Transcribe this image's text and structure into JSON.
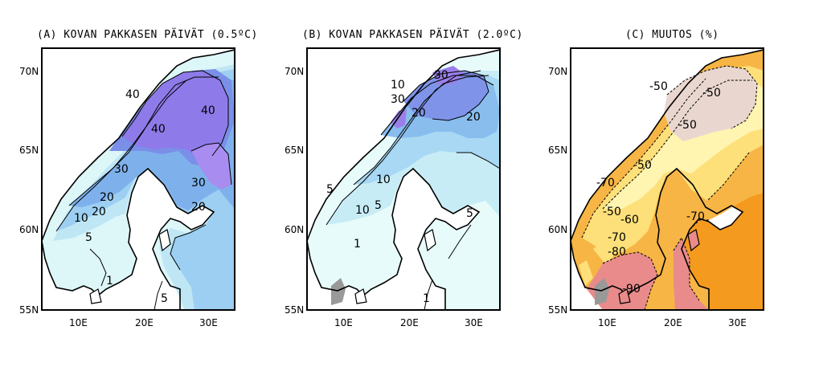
{
  "panels": [
    {
      "id": "a",
      "title": "(A) KOVAN PAKKASEN PÄIVÄT (0.5ºC)",
      "contour_labels": [
        "40",
        "40",
        "40",
        "30",
        "30",
        "20",
        "20",
        "20",
        "10",
        "5",
        "1",
        "5"
      ]
    },
    {
      "id": "b",
      "title": "(B) KOVAN PAKKASEN PÄIVÄT (2.0ºC)",
      "contour_labels": [
        "30",
        "10",
        "30",
        "20",
        "20",
        "10",
        "5",
        "10",
        "5",
        "1",
        "5",
        "1"
      ]
    },
    {
      "id": "c",
      "title": "(C) MUUTOS (%)",
      "contour_labels": [
        "-50",
        "-50",
        "-50",
        "-50",
        "-70",
        "-50",
        "-60",
        "-70",
        "-70",
        "-80",
        "-90"
      ]
    }
  ],
  "axes": {
    "lat_ticks": [
      "70N",
      "65N",
      "60N",
      "55N"
    ],
    "lon_ticks": [
      "10E",
      "20E",
      "30E"
    ]
  },
  "colors": {
    "a_scale": [
      "#ddf6f8",
      "#bfe6f4",
      "#9ccff1",
      "#7eb1ec",
      "#7a8fe8",
      "#8e7be9",
      "#a98cf0"
    ],
    "b_scale": [
      "#e8fbfb",
      "#c7ecf6",
      "#a8d8f3",
      "#88bdee",
      "#7f94e9",
      "#9a7fea"
    ],
    "c_scale": [
      "#e9d7cf",
      "#fff4b0",
      "#fde07a",
      "#f7b545",
      "#f49a1f",
      "#e98b8b"
    ],
    "missing": "#999999"
  }
}
